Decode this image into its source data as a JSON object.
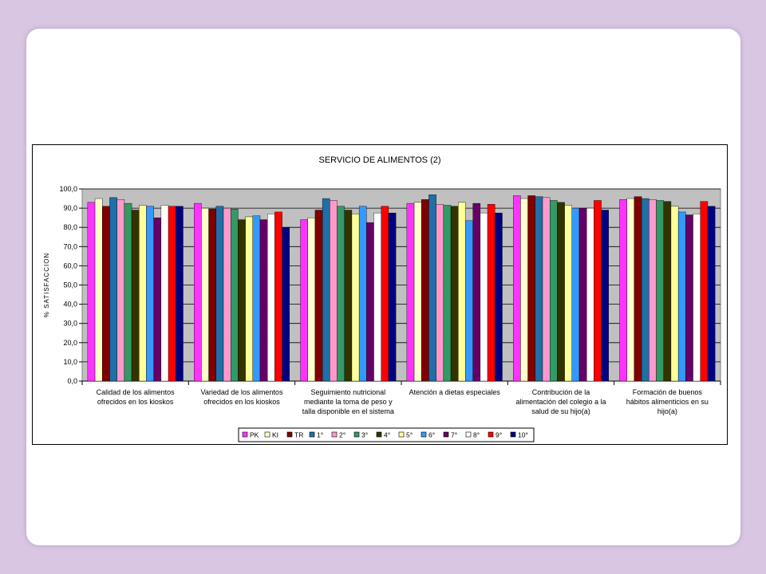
{
  "chart_data": {
    "type": "bar",
    "title": "SERVICIO DE ALIMENTOS (2)",
    "ylabel": "% SATISFACCION",
    "ylim": [
      0,
      100
    ],
    "yticks": [
      "0,0",
      "10,0",
      "20,0",
      "30,0",
      "40,0",
      "50,0",
      "60,0",
      "70,0",
      "80,0",
      "90,0",
      "100,0"
    ],
    "grid": true,
    "legend_position": "bottom",
    "categories": [
      [
        "Calidad de los alimentos",
        "ofrecidos en los kioskos"
      ],
      [
        "Variedad de los alimentos",
        "ofrecidos en los kioskos"
      ],
      [
        "Seguimiento nutricional",
        "mediante la toma de peso y",
        "talla disponible en el sistema"
      ],
      [
        "Atención a dietas especiales"
      ],
      [
        "Contribución de la",
        "alimentación del colegio a la",
        "salud de su hijo(a)"
      ],
      [
        "Formación de buenos",
        "hábitos alimenticios en su",
        "hijo(a)"
      ]
    ],
    "series": [
      {
        "name": "PK",
        "color": "#ff33ff",
        "values": [
          93,
          92.5,
          84,
          92.5,
          96.5,
          94.5
        ]
      },
      {
        "name": "KI",
        "color": "#ffffcc",
        "values": [
          95,
          90,
          85,
          93,
          95,
          95
        ]
      },
      {
        "name": "TR",
        "color": "#800000",
        "values": [
          91,
          89.5,
          89,
          94.5,
          96.5,
          96
        ]
      },
      {
        "name": "1°",
        "color": "#1f6fa8",
        "values": [
          95.5,
          91,
          95,
          97,
          96,
          95
        ]
      },
      {
        "name": "2°",
        "color": "#ff99cc",
        "values": [
          94.5,
          90,
          94,
          92,
          95.5,
          94.5
        ]
      },
      {
        "name": "3°",
        "color": "#339966",
        "values": [
          92.5,
          89.5,
          91,
          91.5,
          94,
          94
        ]
      },
      {
        "name": "4°",
        "color": "#333300",
        "values": [
          89,
          84,
          89,
          91,
          93,
          93.5
        ]
      },
      {
        "name": "5°",
        "color": "#ffff99",
        "values": [
          91.5,
          85.5,
          87,
          93,
          91.5,
          91
        ]
      },
      {
        "name": "6°",
        "color": "#3399ff",
        "values": [
          91,
          86,
          91,
          83.5,
          90,
          88
        ]
      },
      {
        "name": "7°",
        "color": "#660066",
        "values": [
          85,
          84,
          82.5,
          92.5,
          90,
          86.5
        ]
      },
      {
        "name": "8°",
        "color": "#ffffff",
        "values": [
          91.5,
          87,
          87.5,
          87.5,
          90,
          87
        ]
      },
      {
        "name": "9°",
        "color": "#ff0000",
        "values": [
          91,
          88,
          91,
          92,
          94,
          93.5
        ]
      },
      {
        "name": "10°",
        "color": "#000080",
        "values": [
          91,
          80,
          87.5,
          87.5,
          89,
          91
        ]
      }
    ]
  }
}
